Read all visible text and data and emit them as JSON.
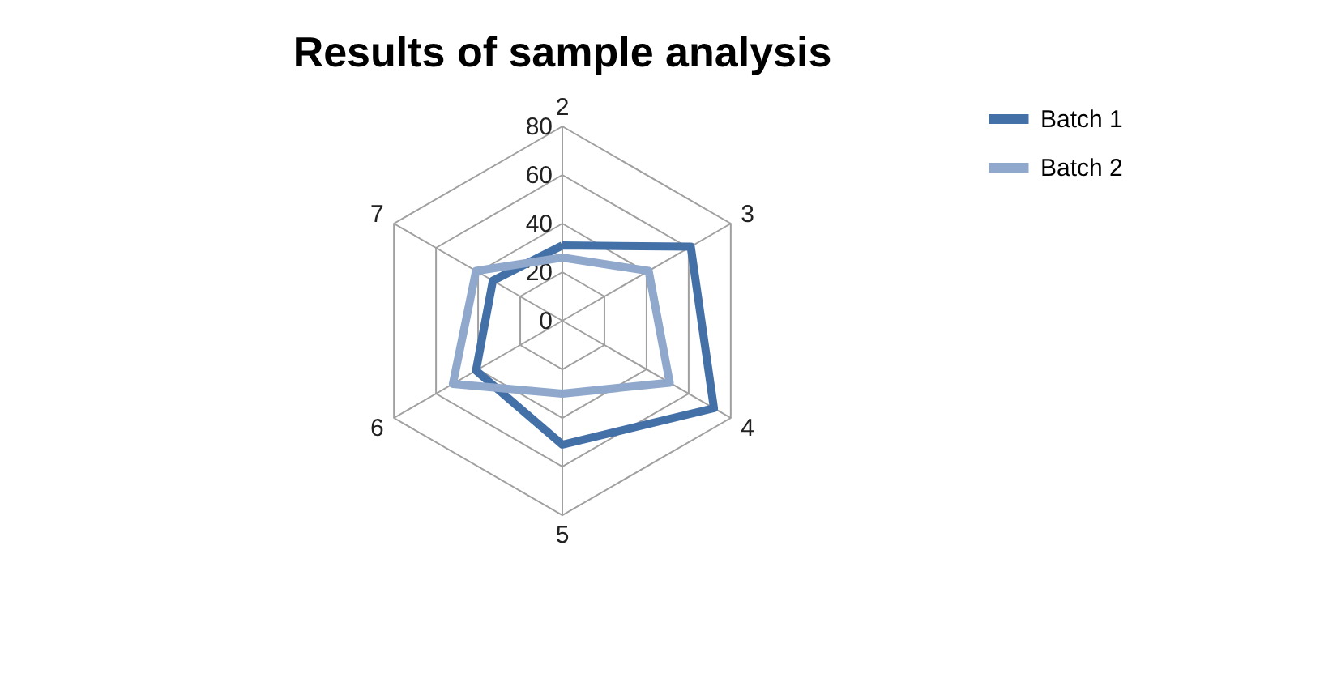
{
  "chart_data": {
    "type": "radar",
    "title": "Results of sample analysis",
    "categories": [
      "2",
      "3",
      "4",
      "5",
      "6",
      "7"
    ],
    "series": [
      {
        "name": "Batch 1",
        "color": "#4470a8",
        "values": [
          31,
          61,
          72,
          51,
          41,
          33
        ]
      },
      {
        "name": "Batch 2",
        "color": "#8fa8cc",
        "values": [
          26,
          41,
          51,
          30,
          52,
          41
        ]
      }
    ],
    "ylim": [
      0,
      80
    ],
    "yticks": [
      0,
      20,
      40,
      60,
      80
    ],
    "grid": true,
    "legend": "right",
    "marker": "none",
    "line_style": "solid"
  }
}
